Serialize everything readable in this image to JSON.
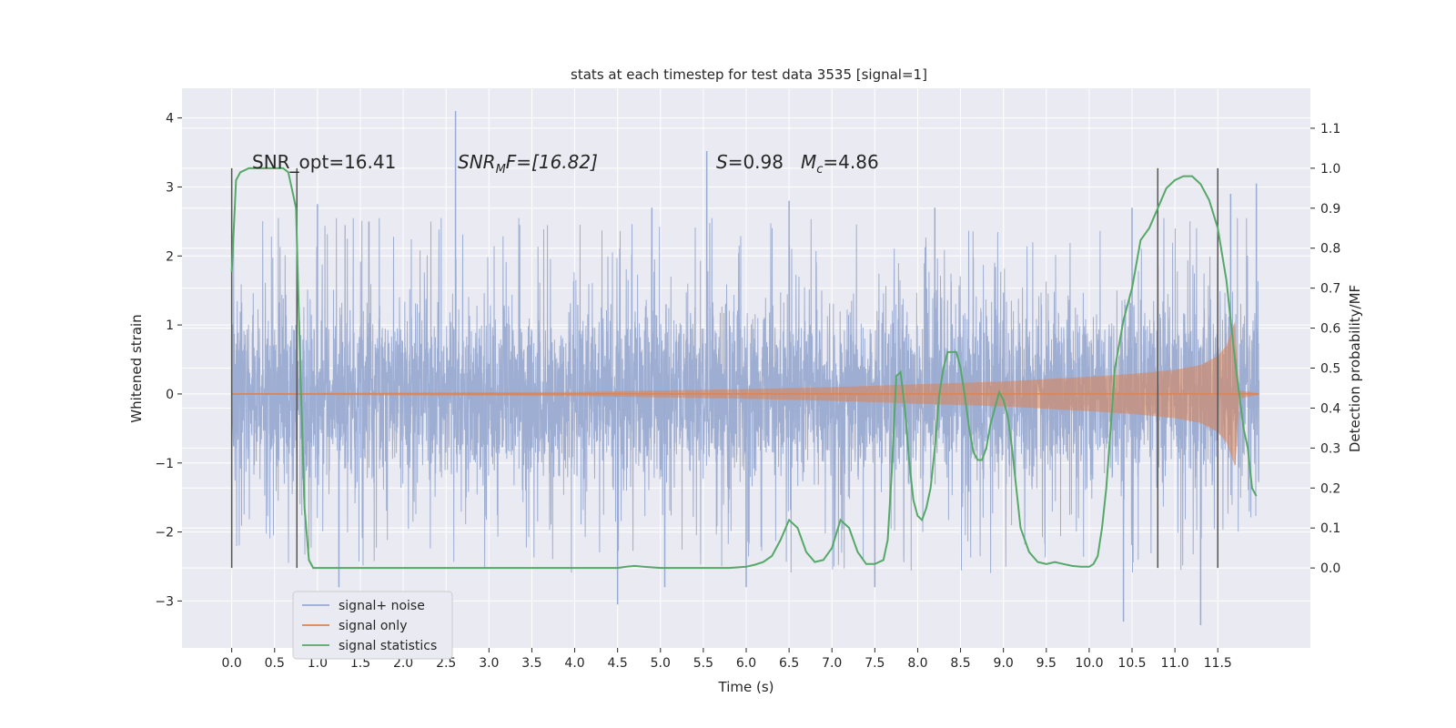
{
  "chart_data": {
    "type": "line",
    "title": "stats at each timestep for test data 3535 [signal=1]",
    "xlabel": "Time (s)",
    "ylabel": "Whitened strain",
    "ylabel_right": "Detection probability/MF",
    "xlim": [
      -0.58,
      12.58
    ],
    "ylim": [
      -3.68,
      4.43
    ],
    "ylim_right": [
      -0.2,
      1.2
    ],
    "x_ticks": [
      0.0,
      0.5,
      1.0,
      1.5,
      2.0,
      2.5,
      3.0,
      3.5,
      4.0,
      4.5,
      5.0,
      5.5,
      6.0,
      6.5,
      7.0,
      7.5,
      8.0,
      8.5,
      9.0,
      9.5,
      10.0,
      10.5,
      11.0,
      11.5
    ],
    "x_tick_labels": [
      "0.0",
      "0.5",
      "1.0",
      "1.5",
      "2.0",
      "2.5",
      "3.0",
      "3.5",
      "4.0",
      "4.5",
      "5.0",
      "5.5",
      "6.0",
      "6.5",
      "7.0",
      "7.5",
      "8.0",
      "8.5",
      "9.0",
      "9.5",
      "10.0",
      "10.5",
      "11.0",
      "11.5"
    ],
    "y_ticks": [
      -3,
      -2,
      -1,
      0,
      1,
      2,
      3,
      4
    ],
    "y_tick_labels": [
      "−3",
      "−2",
      "−1",
      "0",
      "1",
      "2",
      "3",
      "4"
    ],
    "y_right_ticks": [
      0.0,
      0.1,
      0.2,
      0.3,
      0.4,
      0.5,
      0.6,
      0.7,
      0.8,
      0.9,
      1.0,
      1.1
    ],
    "y_right_tick_labels": [
      "0.0",
      "0.1",
      "0.2",
      "0.3",
      "0.4",
      "0.5",
      "0.6",
      "0.7",
      "0.8",
      "0.9",
      "1.0",
      "1.1"
    ],
    "grid": true,
    "legend_position": "lower-left",
    "colors": {
      "background": "#eaeaf2",
      "grid": "#ffffff",
      "noise": "#9aabd1",
      "signal": "#dd8452",
      "stats": "#55a868",
      "marker": "#555555"
    },
    "annotations": {
      "snr_opt": "SNR_opt=16.41",
      "snr_mf": "SNR",
      "snr_mf_sub": "M",
      "snr_mf_rest": "F=[16.82]",
      "s_val": "S",
      "s_rest": "=0.98",
      "mc_val": "M",
      "mc_sub": "c",
      "mc_rest": "=4.86"
    },
    "vertical_markers": [
      0.0,
      0.76,
      10.8,
      11.5
    ],
    "series": [
      {
        "name": "signal+ noise",
        "axis": "left",
        "x_range": [
          0.0,
          11.98
        ],
        "typical_extent": [
          -1.45,
          1.55
        ],
        "spikes": [
          [
            2.61,
            4.1
          ],
          [
            5.54,
            3.52
          ],
          [
            1.0,
            2.75
          ],
          [
            1.6,
            2.5
          ],
          [
            4.9,
            2.7
          ],
          [
            6.5,
            2.8
          ],
          [
            8.2,
            2.7
          ],
          [
            10.5,
            2.7
          ],
          [
            11.65,
            2.9
          ],
          [
            11.95,
            3.05
          ],
          [
            1.25,
            -2.8
          ],
          [
            4.5,
            -3.05
          ],
          [
            5.05,
            -2.8
          ],
          [
            6.0,
            -2.8
          ],
          [
            7.5,
            -2.8
          ],
          [
            10.4,
            -3.3
          ],
          [
            11.3,
            -3.35
          ]
        ]
      },
      {
        "name": "signal only",
        "axis": "left",
        "envelope": [
          [
            0.0,
            0.01
          ],
          [
            2.0,
            0.02
          ],
          [
            4.0,
            0.03
          ],
          [
            5.0,
            0.05
          ],
          [
            6.0,
            0.07
          ],
          [
            7.0,
            0.1
          ],
          [
            8.0,
            0.14
          ],
          [
            9.0,
            0.18
          ],
          [
            10.0,
            0.25
          ],
          [
            10.5,
            0.29
          ],
          [
            11.0,
            0.35
          ],
          [
            11.3,
            0.42
          ],
          [
            11.5,
            0.55
          ],
          [
            11.6,
            0.7
          ],
          [
            11.7,
            1.05
          ],
          [
            11.72,
            0.6
          ],
          [
            11.75,
            0.05
          ],
          [
            11.98,
            0.01
          ]
        ]
      },
      {
        "name": "signal statistics",
        "axis": "right",
        "x": [
          0.0,
          0.05,
          0.1,
          0.2,
          0.3,
          0.4,
          0.5,
          0.6,
          0.66,
          0.7,
          0.75,
          0.8,
          0.85,
          0.9,
          0.95,
          1.0,
          1.5,
          2.0,
          2.5,
          2.8,
          3.0,
          3.5,
          4.0,
          4.5,
          4.6,
          4.7,
          4.8,
          5.0,
          5.5,
          5.8,
          6.0,
          6.1,
          6.2,
          6.3,
          6.4,
          6.5,
          6.6,
          6.7,
          6.8,
          6.9,
          7.0,
          7.1,
          7.2,
          7.3,
          7.4,
          7.5,
          7.6,
          7.65,
          7.7,
          7.75,
          7.8,
          7.85,
          7.9,
          7.95,
          8.0,
          8.05,
          8.1,
          8.15,
          8.2,
          8.25,
          8.3,
          8.35,
          8.4,
          8.45,
          8.5,
          8.55,
          8.6,
          8.65,
          8.7,
          8.75,
          8.8,
          8.85,
          8.9,
          8.95,
          9.0,
          9.05,
          9.1,
          9.15,
          9.2,
          9.3,
          9.4,
          9.5,
          9.6,
          9.7,
          9.8,
          9.9,
          10.0,
          10.05,
          10.1,
          10.15,
          10.2,
          10.25,
          10.3,
          10.35,
          10.4,
          10.5,
          10.6,
          10.7,
          10.8,
          10.9,
          11.0,
          11.1,
          11.2,
          11.3,
          11.4,
          11.5,
          11.6,
          11.7,
          11.8,
          11.85,
          11.9,
          11.95
        ],
        "y": [
          0.74,
          0.97,
          0.99,
          1.0,
          1.0,
          1.0,
          1.0,
          1.0,
          0.99,
          0.95,
          0.9,
          0.5,
          0.15,
          0.02,
          0.0,
          0.0,
          0.0,
          0.0,
          0.0,
          0.0,
          0.0,
          0.0,
          0.0,
          0.0,
          0.003,
          0.005,
          0.003,
          0.0,
          0.0,
          0.0,
          0.003,
          0.008,
          0.015,
          0.03,
          0.07,
          0.12,
          0.1,
          0.04,
          0.015,
          0.02,
          0.05,
          0.12,
          0.1,
          0.04,
          0.01,
          0.01,
          0.02,
          0.07,
          0.25,
          0.48,
          0.49,
          0.4,
          0.27,
          0.17,
          0.13,
          0.12,
          0.15,
          0.2,
          0.3,
          0.43,
          0.5,
          0.54,
          0.54,
          0.54,
          0.5,
          0.43,
          0.35,
          0.29,
          0.27,
          0.27,
          0.3,
          0.36,
          0.4,
          0.44,
          0.42,
          0.38,
          0.3,
          0.2,
          0.1,
          0.04,
          0.015,
          0.01,
          0.015,
          0.01,
          0.005,
          0.003,
          0.003,
          0.01,
          0.03,
          0.1,
          0.2,
          0.35,
          0.5,
          0.56,
          0.62,
          0.7,
          0.82,
          0.85,
          0.9,
          0.95,
          0.97,
          0.98,
          0.98,
          0.96,
          0.92,
          0.85,
          0.72,
          0.52,
          0.35,
          0.3,
          0.2,
          0.18
        ]
      }
    ]
  }
}
